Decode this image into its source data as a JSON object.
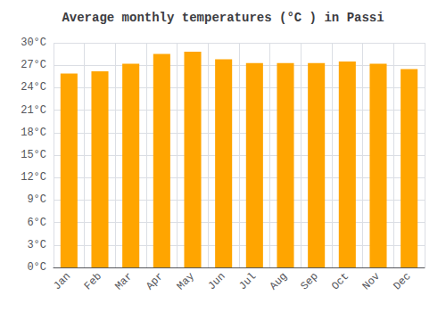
{
  "chart_data": {
    "type": "bar",
    "title": "Average monthly temperatures (°C ) in Passi",
    "categories": [
      "Jan",
      "Feb",
      "Mar",
      "Apr",
      "May",
      "Jun",
      "Jul",
      "Aug",
      "Sep",
      "Oct",
      "Nov",
      "Dec"
    ],
    "values": [
      25.9,
      26.2,
      27.2,
      28.5,
      28.8,
      27.8,
      27.3,
      27.3,
      27.3,
      27.5,
      27.2,
      26.5
    ],
    "color": "#FFA500",
    "ylim": [
      0,
      30
    ],
    "yticks": [
      {
        "value": 0,
        "label": "0°C"
      },
      {
        "value": 3,
        "label": "3°C"
      },
      {
        "value": 6,
        "label": "6°C"
      },
      {
        "value": 9,
        "label": "9°C"
      },
      {
        "value": 12,
        "label": "12°C"
      },
      {
        "value": 15,
        "label": "15°C"
      },
      {
        "value": 18,
        "label": "18°C"
      },
      {
        "value": 21,
        "label": "21°C"
      },
      {
        "value": 24,
        "label": "24°C"
      },
      {
        "value": 27,
        "label": "27°C"
      },
      {
        "value": 30,
        "label": "30°C"
      }
    ],
    "grid": true
  }
}
